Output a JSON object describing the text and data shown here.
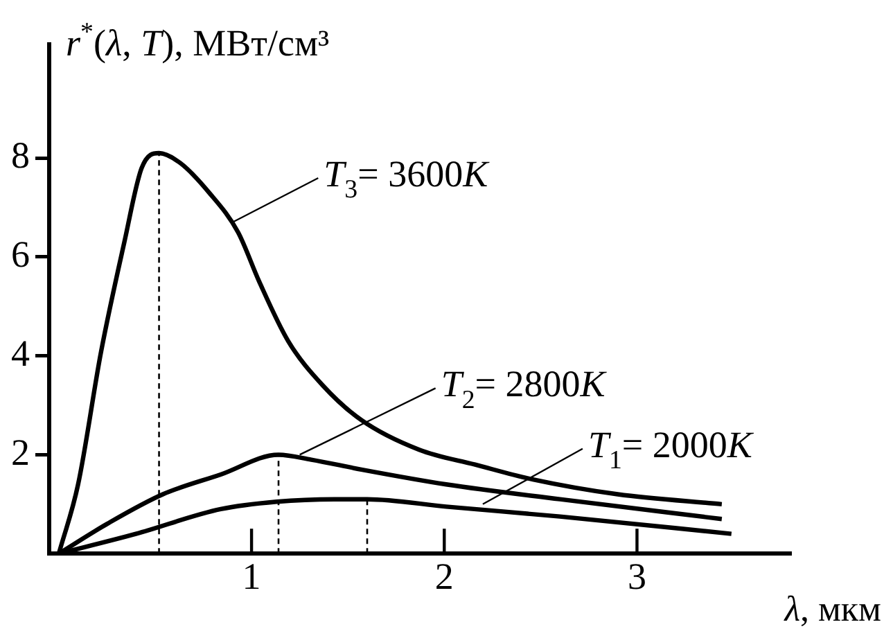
{
  "chart_data": {
    "type": "line",
    "xlabel": "λ, мкм",
    "ylabel": "r$^{*}$(λ, T), МВт/см³",
    "x": [
      0,
      0.1,
      0.22,
      0.34,
      0.43,
      0.52,
      0.63,
      0.78,
      0.93,
      1.04,
      1.19,
      1.37,
      1.57,
      1.87,
      2.16,
      2.46,
      2.9,
      3.44
    ],
    "series": [
      {
        "color": "#000000",
        "values": [
          0,
          1.4,
          4.1,
          6.3,
          7.8,
          8.1,
          7.9,
          7.3,
          6.5,
          5.5,
          4.3,
          3.4,
          2.7,
          2.1,
          1.8,
          1.5,
          1.2,
          1.0
        ]
      },
      {
        "color": "#000000",
        "x": [
          0,
          0.25,
          0.54,
          0.84,
          1.14,
          1.31,
          1.57,
          2.01,
          2.6,
          3.44
        ],
        "values": [
          0,
          0.6,
          1.2,
          1.6,
          2.0,
          1.9,
          1.7,
          1.4,
          1.1,
          0.7
        ]
      },
      {
        "color": "#000000",
        "x": [
          0,
          0.4,
          0.84,
          1.13,
          1.43,
          1.6,
          2.01,
          2.6,
          3.49
        ],
        "values": [
          0,
          0.4,
          0.9,
          1.05,
          1.1,
          1.1,
          0.95,
          0.75,
          0.4
        ]
      }
    ],
    "xlim": [
      -0.05,
      3.8
    ],
    "ylim": [
      0,
      10.3
    ],
    "xticks": [
      1,
      2,
      3
    ],
    "yticks": [
      2,
      4,
      6,
      8
    ],
    "ref_lines": [
      {
        "axis": "x",
        "value": 0.52,
        "line_style": "dashed"
      },
      {
        "axis": "x",
        "value": 1.14,
        "line_style": "dashed"
      },
      {
        "axis": "x",
        "value": 1.6,
        "line_style": "dashed"
      }
    ],
    "annotations": [
      {
        "text": "T$_{3}$= 3600K",
        "x": 0.9,
        "y": 6.7
      },
      {
        "text": "T$_{2}$= 2800K",
        "x": 1.25,
        "y": 2.0
      },
      {
        "text": "T$_{1}$= 2000K",
        "x": 2.2,
        "y": 1.0
      }
    ],
    "marker": "none",
    "line_style": "solid",
    "legend": false
  }
}
